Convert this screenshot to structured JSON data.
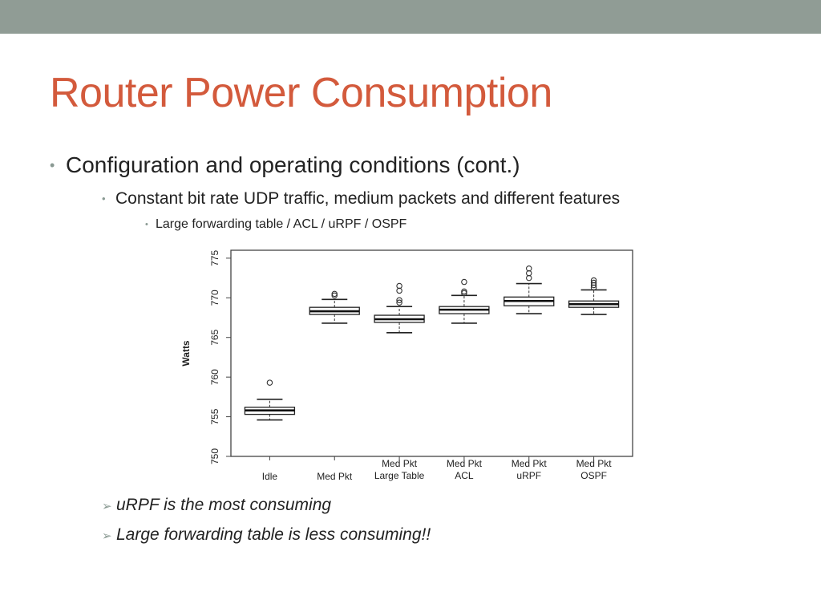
{
  "slide": {
    "title": "Router Power Consumption",
    "bullet_level1": "Configuration and operating conditions (cont.)",
    "bullet_level2": "Constant bit rate UDP traffic, medium packets and different features",
    "bullet_level3": "Large forwarding table / ACL / uRPF / OSPF",
    "bullet_glyph": "•",
    "arrow_glyph": "➢",
    "arrow_bullets": [
      "uRPF is the most consuming",
      "Large forwarding table is less consuming!!"
    ]
  },
  "colors": {
    "top_bar": "#909c95",
    "title": "#d35a3c",
    "body_text": "#222222",
    "bullet_marker": "#8a9a93"
  },
  "chart_data": {
    "type": "boxplot",
    "title": "",
    "xlabel": "",
    "ylabel": "Watts",
    "ylim": [
      750,
      776
    ],
    "yticks": [
      750,
      755,
      760,
      765,
      770,
      775
    ],
    "grid": false,
    "categories": [
      [
        "Idle"
      ],
      [
        "Med Pkt"
      ],
      [
        "Med Pkt",
        "Large Table"
      ],
      [
        "Med Pkt",
        "ACL"
      ],
      [
        "Med Pkt",
        "uRPF"
      ],
      [
        "Med Pkt",
        "OSPF"
      ]
    ],
    "boxes": [
      {
        "whisker_low": 754.6,
        "q1": 755.3,
        "median": 755.8,
        "q3": 756.2,
        "whisker_high": 757.2,
        "outliers": [
          759.3
        ]
      },
      {
        "whisker_low": 766.8,
        "q1": 767.9,
        "median": 768.3,
        "q3": 768.8,
        "whisker_high": 769.8,
        "outliers": [
          770.3,
          770.5
        ]
      },
      {
        "whisker_low": 765.6,
        "q1": 766.9,
        "median": 767.3,
        "q3": 767.8,
        "whisker_high": 768.9,
        "outliers": [
          769.4,
          769.7,
          770.9,
          771.5
        ]
      },
      {
        "whisker_low": 766.8,
        "q1": 768.0,
        "median": 768.5,
        "q3": 768.9,
        "whisker_high": 770.3,
        "outliers": [
          770.6,
          770.8,
          772.0
        ]
      },
      {
        "whisker_low": 768.0,
        "q1": 769.0,
        "median": 769.6,
        "q3": 770.1,
        "whisker_high": 771.8,
        "outliers": [
          772.5,
          773.1,
          773.7
        ]
      },
      {
        "whisker_low": 767.9,
        "q1": 768.8,
        "median": 769.2,
        "q3": 769.6,
        "whisker_high": 771.0,
        "outliers": [
          771.3,
          771.6,
          771.9,
          772.2
        ]
      }
    ]
  }
}
